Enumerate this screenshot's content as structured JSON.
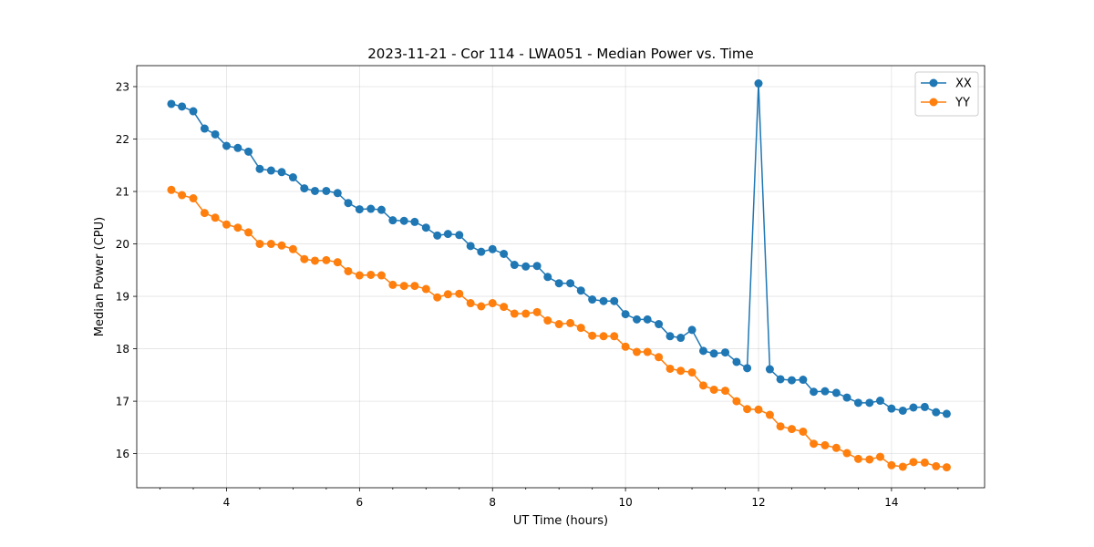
{
  "chart_data": {
    "type": "line",
    "title": "2023-11-21 - Cor 114 - LWA051 - Median Power vs. Time",
    "xlabel": "UT Time (hours)",
    "ylabel": "Median Power (CPU)",
    "xlim": [
      2.65,
      15.4
    ],
    "ylim": [
      15.35,
      23.4
    ],
    "xticks": [
      4,
      6,
      8,
      10,
      12,
      14
    ],
    "xtick_labels": [
      "4",
      "6",
      "8",
      "10",
      "12",
      "14"
    ],
    "yticks": [
      16,
      17,
      18,
      19,
      20,
      21,
      22,
      23
    ],
    "ytick_labels": [
      "16",
      "17",
      "18",
      "19",
      "20",
      "21",
      "22",
      "23"
    ],
    "grid": true,
    "legend_position": "top-right",
    "x": [
      3.17,
      3.33,
      3.5,
      3.67,
      3.83,
      4.0,
      4.17,
      4.33,
      4.5,
      4.67,
      4.83,
      5.0,
      5.17,
      5.33,
      5.5,
      5.67,
      5.83,
      6.0,
      6.17,
      6.33,
      6.5,
      6.67,
      6.83,
      7.0,
      7.17,
      7.33,
      7.5,
      7.67,
      7.83,
      8.0,
      8.17,
      8.33,
      8.5,
      8.67,
      8.83,
      9.0,
      9.17,
      9.33,
      9.5,
      9.67,
      9.83,
      10.0,
      10.17,
      10.33,
      10.5,
      10.67,
      10.83,
      11.0,
      11.17,
      11.33,
      11.5,
      11.67,
      11.83,
      12.0,
      12.17,
      12.33,
      12.5,
      12.67,
      12.83,
      13.0,
      13.17,
      13.33,
      13.5,
      13.67,
      13.83,
      14.0,
      14.17,
      14.33,
      14.5,
      14.67,
      14.83
    ],
    "series": [
      {
        "name": "XX",
        "color": "#1f77b4",
        "values": [
          22.67,
          22.62,
          22.53,
          22.2,
          22.09,
          21.87,
          21.83,
          21.76,
          21.43,
          21.4,
          21.37,
          21.27,
          21.06,
          21.01,
          21.01,
          20.97,
          20.78,
          20.66,
          20.67,
          20.65,
          20.45,
          20.44,
          20.42,
          20.31,
          20.16,
          20.19,
          20.17,
          19.96,
          19.85,
          19.9,
          19.81,
          19.6,
          19.57,
          19.58,
          19.37,
          19.25,
          19.25,
          19.11,
          18.94,
          18.91,
          18.91,
          18.66,
          18.56,
          18.56,
          18.47,
          18.24,
          18.21,
          18.36,
          17.96,
          17.91,
          17.93,
          17.75,
          17.63,
          23.06,
          17.61,
          17.42,
          17.4,
          17.41,
          17.18,
          17.19,
          17.16,
          17.07,
          16.97,
          16.97,
          17.01,
          16.86,
          16.82,
          16.88,
          16.89,
          16.79,
          16.76
        ]
      },
      {
        "name": "YY",
        "color": "#ff7f0e",
        "values": [
          21.03,
          20.93,
          20.87,
          20.59,
          20.5,
          20.37,
          20.31,
          20.22,
          20.0,
          20.0,
          19.97,
          19.9,
          19.71,
          19.68,
          19.69,
          19.65,
          19.48,
          19.4,
          19.41,
          19.4,
          19.22,
          19.2,
          19.2,
          19.14,
          18.98,
          19.04,
          19.05,
          18.87,
          18.81,
          18.87,
          18.8,
          18.67,
          18.67,
          18.7,
          18.54,
          18.47,
          18.49,
          18.4,
          18.25,
          18.24,
          18.24,
          18.04,
          17.94,
          17.94,
          17.84,
          17.62,
          17.58,
          17.55,
          17.3,
          17.22,
          17.2,
          17.0,
          16.85,
          16.84,
          16.74,
          16.52,
          16.47,
          16.42,
          16.19,
          16.16,
          16.11,
          16.01,
          15.9,
          15.89,
          15.94,
          15.78,
          15.75,
          15.84,
          15.83,
          15.76,
          15.74
        ]
      }
    ]
  }
}
